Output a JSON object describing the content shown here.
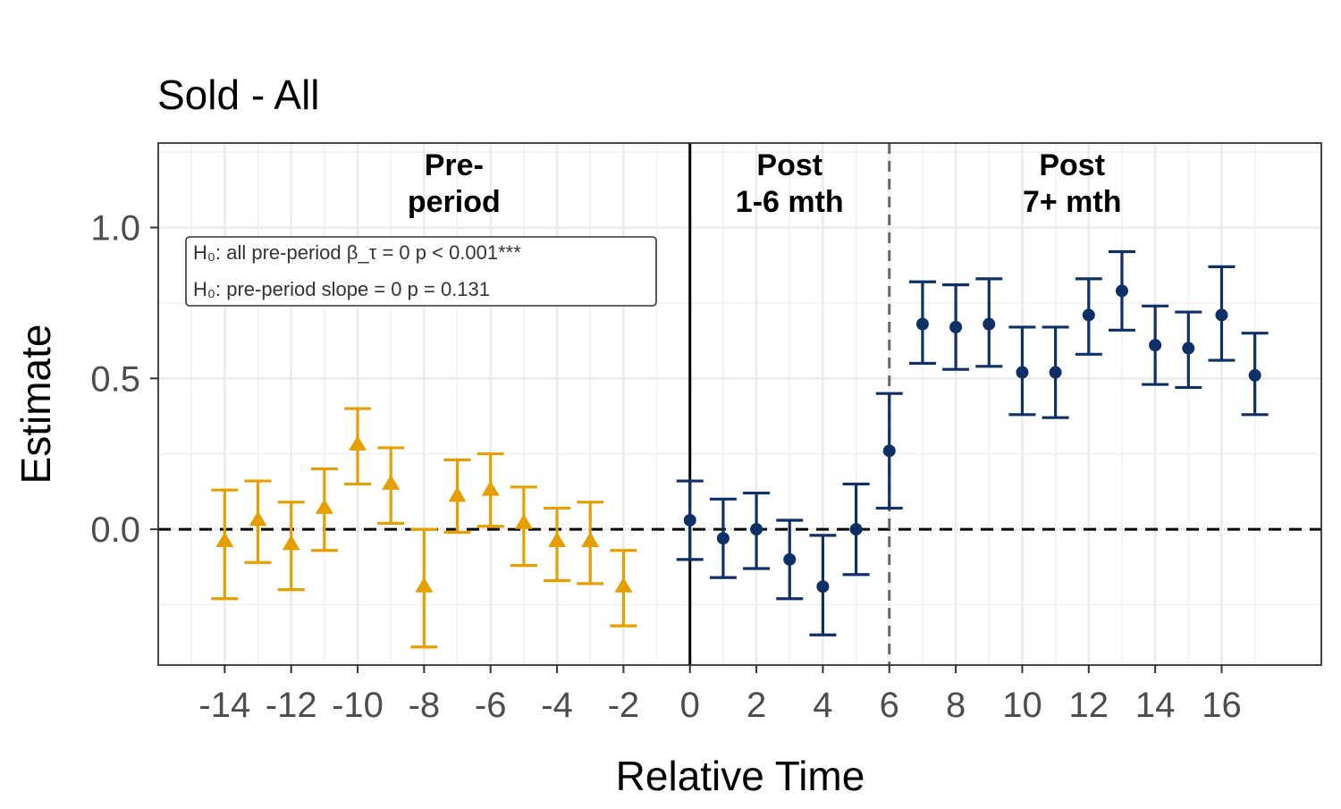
{
  "chart_data": {
    "type": "scatter",
    "title": "Sold - All",
    "xlabel": "Relative Time",
    "ylabel": "Estimate",
    "xlim": [
      -16,
      19
    ],
    "ylim": [
      -0.45,
      1.28
    ],
    "x_ticks": [
      -14,
      -12,
      -10,
      -8,
      -6,
      -4,
      -2,
      0,
      2,
      4,
      6,
      8,
      10,
      12,
      14,
      16
    ],
    "x_tick_labels": [
      "-14",
      "-12",
      "-10",
      "-8",
      "-6",
      "-4",
      "-2",
      "0",
      "2",
      "4",
      "6",
      "8",
      "10",
      "12",
      "14",
      "16"
    ],
    "y_ticks": [
      0.0,
      0.5,
      1.0
    ],
    "y_tick_labels": [
      "0.0",
      "0.5",
      "1.0"
    ],
    "grid": true,
    "reference_lines": {
      "zero_line_y": 0,
      "event_line_x": 0,
      "period_split_x": 6
    },
    "regions": [
      {
        "label_line1": "Pre-",
        "label_line2": "period",
        "x_center": -7.1
      },
      {
        "label_line1": "Post",
        "label_line2": "1-6 mth",
        "x_center": 3
      },
      {
        "label_line1": "Post",
        "label_line2": "7+ mth",
        "x_center": 11.5
      }
    ],
    "annotation": {
      "line1": "H₀: all pre-period β_τ = 0    p < 0.001***",
      "line2": "H₀: pre-period slope = 0    p = 0.131"
    },
    "series": [
      {
        "color": "#E69F00",
        "marker": "triangle",
        "points": [
          {
            "x": -14,
            "y": -0.04,
            "lo": -0.23,
            "hi": 0.13
          },
          {
            "x": -13,
            "y": 0.03,
            "lo": -0.11,
            "hi": 0.16
          },
          {
            "x": -12,
            "y": -0.05,
            "lo": -0.2,
            "hi": 0.09
          },
          {
            "x": -11,
            "y": 0.07,
            "lo": -0.07,
            "hi": 0.2
          },
          {
            "x": -10,
            "y": 0.28,
            "lo": 0.15,
            "hi": 0.4
          },
          {
            "x": -9,
            "y": 0.15,
            "lo": 0.02,
            "hi": 0.27
          },
          {
            "x": -8,
            "y": -0.19,
            "lo": -0.39,
            "hi": 0.0
          },
          {
            "x": -7,
            "y": 0.11,
            "lo": -0.01,
            "hi": 0.23
          },
          {
            "x": -6,
            "y": 0.13,
            "lo": 0.01,
            "hi": 0.25
          },
          {
            "x": -5,
            "y": 0.02,
            "lo": -0.12,
            "hi": 0.14
          },
          {
            "x": -4,
            "y": -0.04,
            "lo": -0.17,
            "hi": 0.07
          },
          {
            "x": -3,
            "y": -0.04,
            "lo": -0.18,
            "hi": 0.09
          },
          {
            "x": -2,
            "y": -0.19,
            "lo": -0.32,
            "hi": -0.07
          }
        ]
      },
      {
        "color": "#0E3067",
        "marker": "circle",
        "points": [
          {
            "x": 0,
            "y": 0.03,
            "lo": -0.1,
            "hi": 0.16
          },
          {
            "x": 1,
            "y": -0.03,
            "lo": -0.16,
            "hi": 0.1
          },
          {
            "x": 2,
            "y": 0.0,
            "lo": -0.13,
            "hi": 0.12
          },
          {
            "x": 3,
            "y": -0.1,
            "lo": -0.23,
            "hi": 0.03
          },
          {
            "x": 4,
            "y": -0.19,
            "lo": -0.35,
            "hi": -0.02
          },
          {
            "x": 5,
            "y": 0.0,
            "lo": -0.15,
            "hi": 0.15
          },
          {
            "x": 6,
            "y": 0.26,
            "lo": 0.07,
            "hi": 0.45
          },
          {
            "x": 7,
            "y": 0.68,
            "lo": 0.55,
            "hi": 0.82
          },
          {
            "x": 8,
            "y": 0.67,
            "lo": 0.53,
            "hi": 0.81
          },
          {
            "x": 9,
            "y": 0.68,
            "lo": 0.54,
            "hi": 0.83
          },
          {
            "x": 10,
            "y": 0.52,
            "lo": 0.38,
            "hi": 0.67
          },
          {
            "x": 11,
            "y": 0.52,
            "lo": 0.37,
            "hi": 0.67
          },
          {
            "x": 12,
            "y": 0.71,
            "lo": 0.58,
            "hi": 0.83
          },
          {
            "x": 13,
            "y": 0.79,
            "lo": 0.66,
            "hi": 0.92
          },
          {
            "x": 14,
            "y": 0.61,
            "lo": 0.48,
            "hi": 0.74
          },
          {
            "x": 15,
            "y": 0.6,
            "lo": 0.47,
            "hi": 0.72
          },
          {
            "x": 16,
            "y": 0.71,
            "lo": 0.56,
            "hi": 0.87
          },
          {
            "x": 17,
            "y": 0.51,
            "lo": 0.38,
            "hi": 0.65
          }
        ]
      }
    ]
  }
}
